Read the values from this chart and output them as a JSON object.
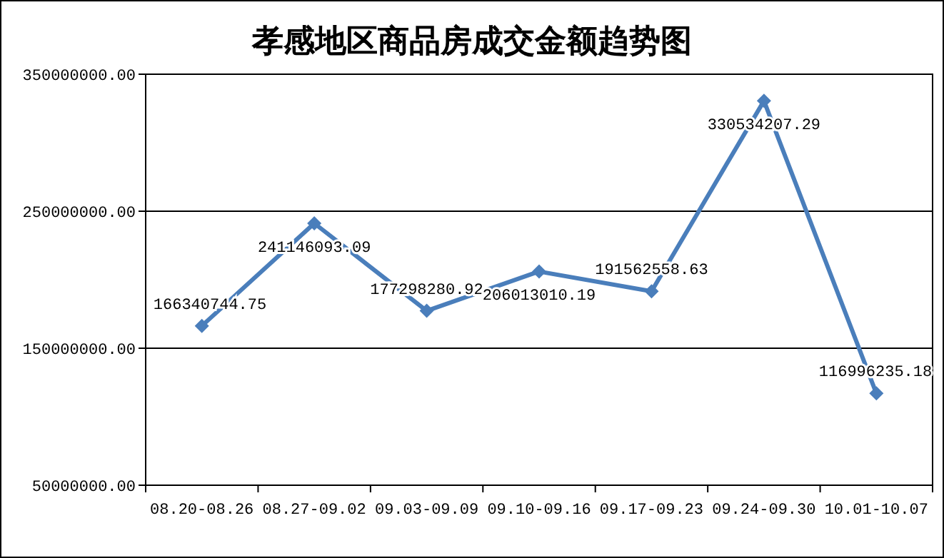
{
  "chart_data": {
    "type": "line",
    "title": "孝感地区商品房成交金额趋势图",
    "categories": [
      "08.20-08.26",
      "08.27-09.02",
      "09.03-09.09",
      "09.10-09.16",
      "09.17-09.23",
      "09.24-09.30",
      "10.01-10.07"
    ],
    "series": [
      {
        "color": "#4a7ebb",
        "values": [
          166340744.75,
          241146093.09,
          177298280.92,
          206013010.19,
          191562558.63,
          330534207.29,
          116996235.18
        ]
      }
    ],
    "ylim": [
      50000000,
      350000000
    ],
    "yticks": [
      {
        "value": 50000000,
        "label": "50000000.00"
      },
      {
        "value": 150000000,
        "label": "150000000.00"
      },
      {
        "value": 250000000,
        "label": "250000000.00"
      },
      {
        "value": 350000000,
        "label": "350000000.00"
      }
    ],
    "grid": "y",
    "marker": "diamond",
    "line_style": "solid",
    "data_labels": true
  }
}
